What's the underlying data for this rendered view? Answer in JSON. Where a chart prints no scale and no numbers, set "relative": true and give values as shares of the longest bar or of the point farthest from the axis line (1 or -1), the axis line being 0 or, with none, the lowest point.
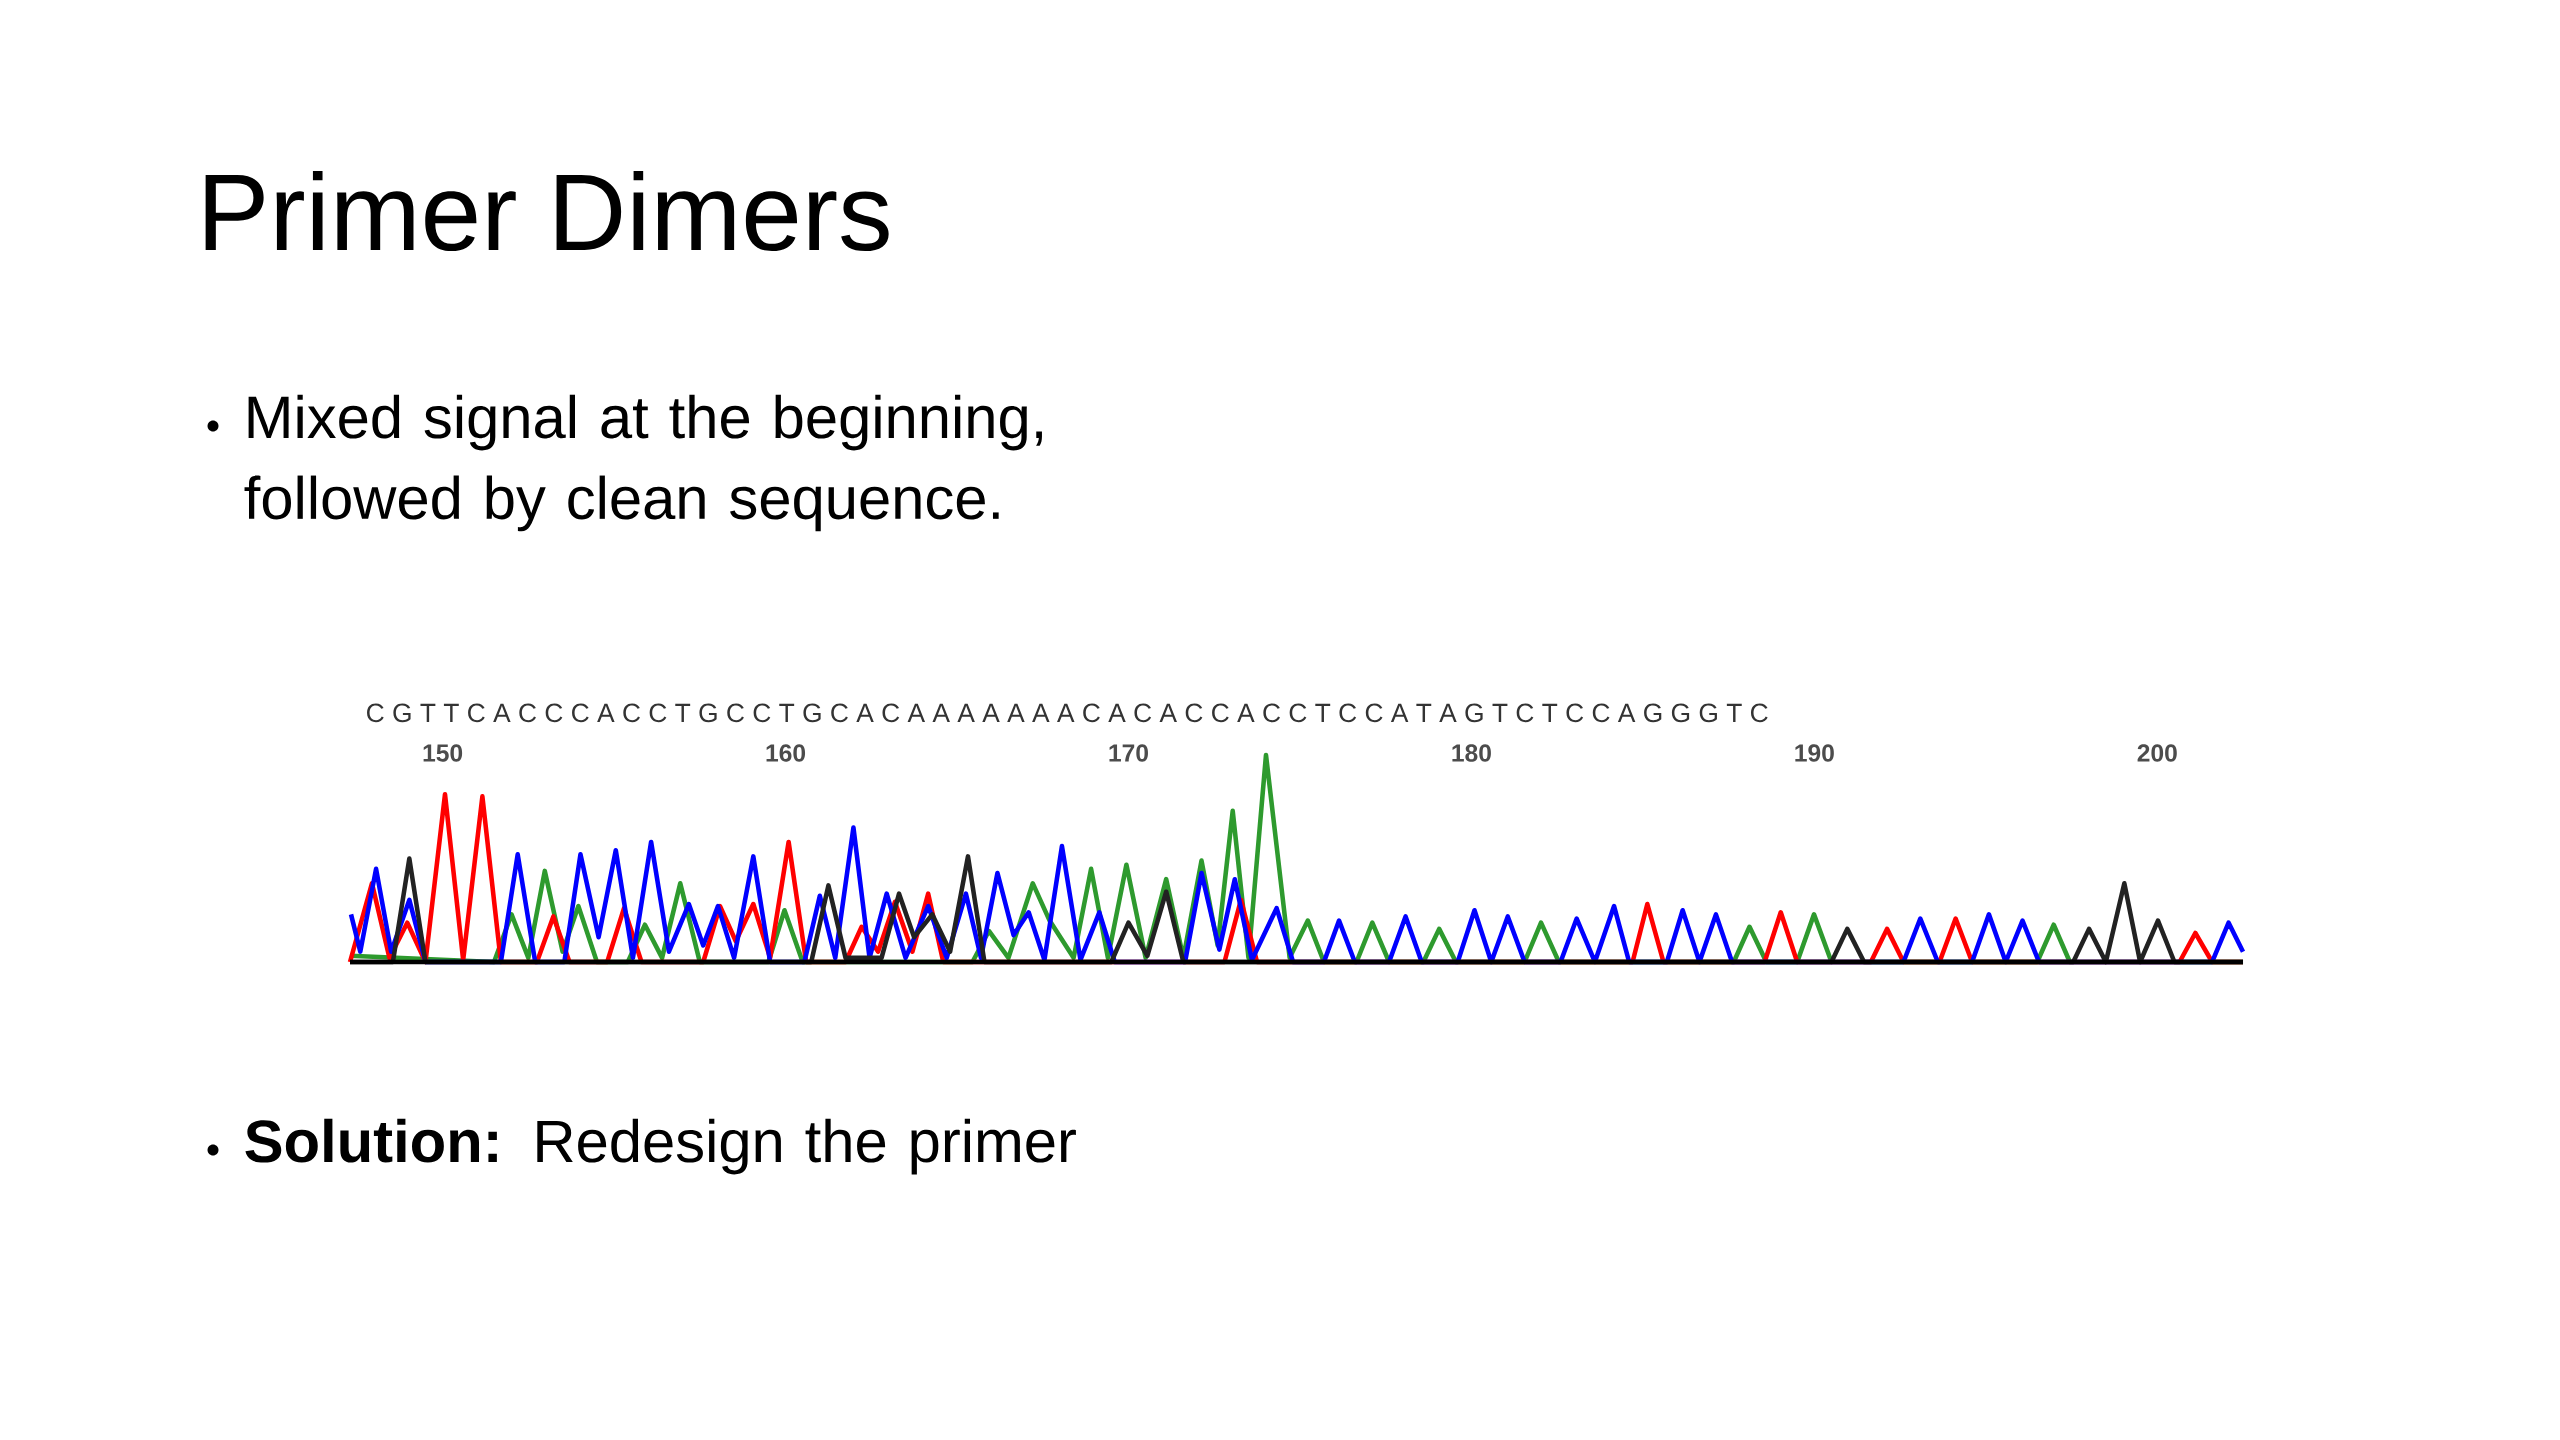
{
  "chart_data": {
    "type": "line",
    "title": "Primer Dimers",
    "annotations": [
      "Mixed signal at the beginning, followed by clean sequence.",
      "**Solution:**  Redesign the primer",
      "C G T T C A C C C A C C T G C C T G C A C A A A A A A A C A C A C C A C C T C C A T A G T C T C C A G G G T C"
    ],
    "relative": true,
    "marker": "none",
    "xlim": [
      147.3,
      202.5
    ],
    "xticks": [
      150,
      160,
      170,
      180,
      190,
      200
    ],
    "series": [
      {
        "color": "#2e9a2e",
        "x": [
          147.3,
          151.5,
          152.01,
          152.5,
          152.98,
          153.5,
          153.96,
          154.5,
          155.4,
          155.9,
          156.4,
          156.93,
          157.5,
          159.5,
          159.97,
          160.5,
          165.45,
          165.93,
          166.5,
          167.21,
          167.7,
          168.4,
          168.91,
          169.4,
          169.94,
          170.5,
          171.1,
          171.6,
          172.13,
          172.6,
          173.04,
          173.5,
          174.01,
          174.7,
          175.23,
          175.7,
          176.65,
          177.11,
          177.6,
          178.6,
          179.06,
          179.55,
          181.55,
          182.03,
          182.55,
          187.65,
          188.11,
          188.6,
          189.5,
          189.99,
          190.5,
          196.5,
          196.98,
          197.45,
          202.5
        ],
        "values": [
          0.03,
          0,
          0.23,
          0.02,
          0.44,
          0.05,
          0.27,
          0,
          0,
          0.18,
          0.02,
          0.38,
          0,
          0,
          0.25,
          0,
          0,
          0.15,
          0.02,
          0.38,
          0.2,
          0.02,
          0.45,
          0.02,
          0.47,
          0.02,
          0.4,
          0.02,
          0.49,
          0.08,
          0.73,
          0.02,
          1.0,
          0.02,
          0.2,
          0,
          0,
          0.19,
          0,
          0,
          0.16,
          0,
          0,
          0.19,
          0,
          0,
          0.17,
          0,
          0,
          0.23,
          0,
          0,
          0.18,
          0,
          0
        ]
      },
      {
        "color": "#ff0000",
        "x": [
          147.3,
          147.94,
          148.45,
          148.97,
          149.5,
          150.07,
          150.6,
          151.16,
          151.7,
          152.75,
          153.23,
          153.7,
          154.8,
          155.29,
          155.8,
          157.6,
          158.09,
          158.55,
          159.06,
          159.55,
          160.09,
          160.6,
          161.75,
          162.22,
          162.7,
          163.19,
          163.7,
          164.16,
          164.6,
          172.8,
          173.28,
          173.75,
          184.7,
          185.13,
          185.6,
          188.55,
          189.02,
          189.5,
          191.65,
          192.12,
          192.6,
          193.65,
          194.12,
          194.6,
          200.65,
          201.11,
          201.6,
          202.5
        ],
        "values": [
          0,
          0.38,
          0.02,
          0.19,
          0,
          0.81,
          0.01,
          0.8,
          0,
          0,
          0.22,
          0,
          0,
          0.26,
          0,
          0,
          0.27,
          0.1,
          0.28,
          0.02,
          0.58,
          0,
          0,
          0.17,
          0.05,
          0.29,
          0.05,
          0.33,
          0,
          0,
          0.3,
          0,
          0,
          0.28,
          0,
          0,
          0.24,
          0,
          0,
          0.16,
          0,
          0,
          0.21,
          0,
          0,
          0.14,
          0,
          0
        ]
      },
      {
        "color": "#0000ff",
        "x": [
          147.33,
          147.6,
          148.06,
          148.5,
          149.03,
          149.5,
          151.7,
          152.19,
          152.7,
          153.55,
          154.02,
          154.55,
          155.05,
          155.55,
          156.08,
          156.6,
          157.18,
          157.6,
          158.03,
          158.5,
          159.06,
          159.55,
          160.55,
          161.0,
          161.45,
          161.98,
          162.45,
          162.95,
          163.5,
          164.16,
          164.7,
          165.26,
          165.7,
          166.18,
          166.65,
          167.09,
          167.55,
          168.06,
          168.6,
          169.15,
          169.6,
          171.65,
          172.13,
          172.65,
          173.1,
          173.6,
          174.32,
          174.8,
          175.7,
          176.14,
          176.6,
          177.6,
          178.08,
          178.55,
          179.6,
          180.09,
          180.58,
          181.06,
          181.55,
          182.6,
          183.07,
          183.6,
          184.16,
          184.6,
          185.7,
          186.16,
          186.65,
          187.13,
          187.6,
          192.6,
          193.09,
          193.6,
          194.6,
          195.09,
          195.58,
          196.07,
          196.55,
          201.6,
          202.08,
          202.5
        ],
        "values": [
          0.23,
          0.05,
          0.45,
          0.05,
          0.3,
          0,
          0,
          0.52,
          0,
          0,
          0.52,
          0.12,
          0.54,
          0.02,
          0.58,
          0.05,
          0.28,
          0.08,
          0.27,
          0.02,
          0.51,
          0,
          0,
          0.32,
          0.02,
          0.65,
          0.02,
          0.33,
          0.02,
          0.27,
          0.02,
          0.33,
          0.02,
          0.43,
          0.13,
          0.24,
          0.01,
          0.56,
          0.01,
          0.24,
          0,
          0,
          0.43,
          0.06,
          0.4,
          0.01,
          0.26,
          0,
          0,
          0.2,
          0,
          0,
          0.22,
          0,
          0,
          0.25,
          0,
          0.22,
          0,
          0,
          0.21,
          0,
          0.27,
          0,
          0,
          0.25,
          0,
          0.23,
          0,
          0,
          0.21,
          0,
          0,
          0.23,
          0,
          0.2,
          0,
          0,
          0.19,
          0.05
        ]
      },
      {
        "color": "#222222",
        "x": [
          147.3,
          148.55,
          149.03,
          149.5,
          160.75,
          161.25,
          161.75,
          162.8,
          163.31,
          163.75,
          164.28,
          164.8,
          165.32,
          165.8,
          169.5,
          170.0,
          170.55,
          171.1,
          171.6,
          190.5,
          190.96,
          191.45,
          197.55,
          198.01,
          198.5,
          199.04,
          199.5,
          200.02,
          200.5,
          202.5
        ],
        "values": [
          0,
          0,
          0.5,
          0,
          0,
          0.37,
          0.02,
          0.02,
          0.33,
          0.12,
          0.23,
          0.05,
          0.51,
          0,
          0,
          0.19,
          0.03,
          0.34,
          0,
          0,
          0.16,
          0,
          0,
          0.16,
          0,
          0.38,
          0,
          0.2,
          0,
          0
        ]
      }
    ]
  }
}
